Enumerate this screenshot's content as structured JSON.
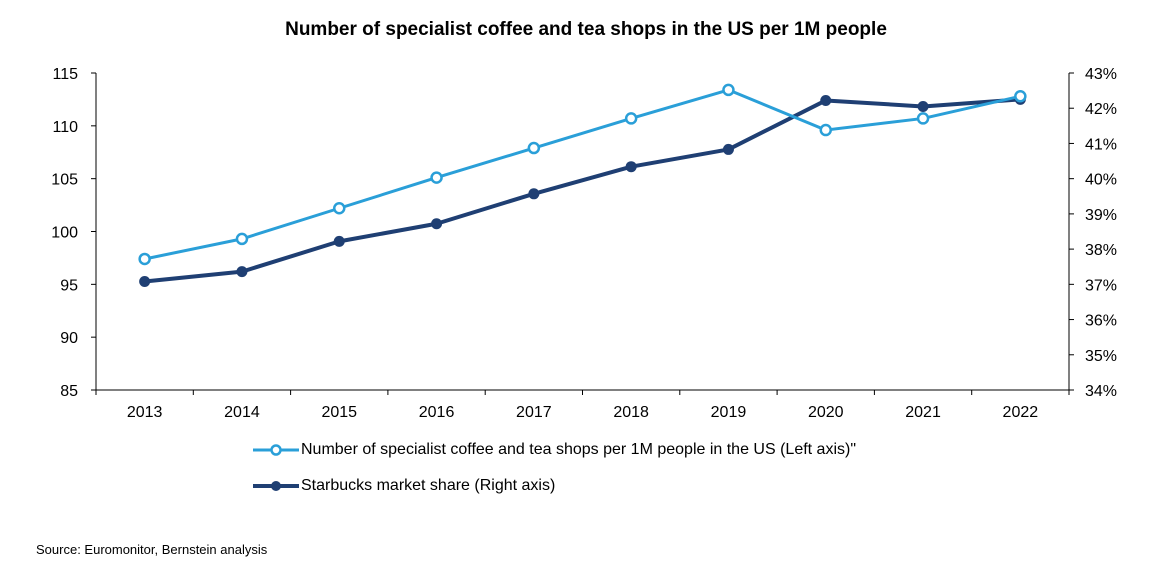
{
  "chart_data": {
    "type": "line",
    "title": "Number of specialist coffee and tea shops in the US per 1M people",
    "categories": [
      "2013",
      "2014",
      "2015",
      "2016",
      "2017",
      "2018",
      "2019",
      "2020",
      "2021",
      "2022"
    ],
    "y_left": {
      "range": [
        85,
        115
      ],
      "ticks": [
        "85",
        "90",
        "95",
        "100",
        "105",
        "110",
        "115"
      ]
    },
    "y_right": {
      "range": [
        34,
        43
      ],
      "ticks": [
        "34%",
        "35%",
        "36%",
        "37%",
        "38%",
        "39%",
        "40%",
        "41%",
        "42%",
        "43%"
      ]
    },
    "series": [
      {
        "name": "Number of specialist coffee and tea shops per 1M people in the US (Left axis)\"",
        "axis": "left",
        "color": "#2a9fd8",
        "marker": "hollow-circle",
        "values": [
          97.4,
          99.3,
          102.2,
          105.1,
          107.9,
          110.7,
          113.4,
          109.6,
          110.7,
          112.8
        ]
      },
      {
        "name": "Starbucks market share (Right axis)",
        "axis": "right",
        "color": "#1f3f73",
        "marker": "filled-circle",
        "values": [
          37.08,
          37.36,
          38.22,
          38.72,
          39.57,
          40.34,
          40.83,
          42.22,
          42.05,
          42.25
        ]
      }
    ],
    "grid": false,
    "legend_position": "bottom-left"
  },
  "source": "Source: Euromonitor, Bernstein analysis"
}
